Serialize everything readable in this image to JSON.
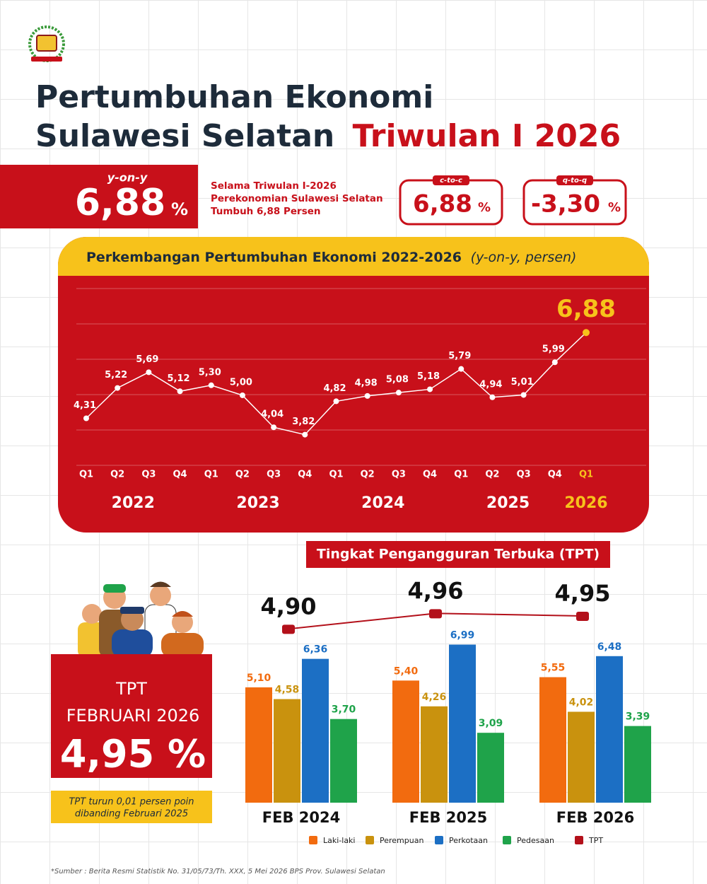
{
  "header": {
    "title_line1": "Pertumbuhan Ekonomi",
    "title_line2": "Sulawesi Selatan",
    "title_highlight": "Triwulan I 2026"
  },
  "yoy": {
    "label": "y-on-y",
    "value": "6,88",
    "unit": "%"
  },
  "summary": [
    "Selama Triwulan I-2026",
    "Perekonomian Sulawesi Selatan",
    "Tumbuh 6,88 Persen"
  ],
  "ctoc": {
    "label": "c-to-c",
    "value": "6,88",
    "unit": "%"
  },
  "qtoq": {
    "label": "q-to-q",
    "value": "-3,30",
    "unit": "%"
  },
  "tpt_box": {
    "title": "TPT",
    "subtitle": "FEBRUARI 2026",
    "value": "4,95 %",
    "note": [
      "TPT turun 0,01 persen poin",
      "dibanding Februari 2025"
    ]
  },
  "source": "*Sumber : Berita Resmi Statistik No. 31/05/73/Th. XXX, 5 Mei 2026 BPS Prov. Sulawesi Selatan",
  "chart_data": [
    {
      "type": "line",
      "title": "Perkembangan Pertumbuhan Ekonomi 2022-2026",
      "subtitle": "(y-on-y, persen)",
      "categories": [
        "Q1",
        "Q2",
        "Q3",
        "Q4",
        "Q1",
        "Q2",
        "Q3",
        "Q4",
        "Q1",
        "Q2",
        "Q3",
        "Q4",
        "Q1",
        "Q2",
        "Q3",
        "Q4",
        "Q1"
      ],
      "groups": [
        "2022",
        "2023",
        "2024",
        "2025",
        "2026"
      ],
      "values": [
        4.31,
        5.22,
        5.69,
        5.12,
        5.3,
        5.0,
        4.04,
        3.82,
        4.82,
        4.98,
        5.08,
        5.18,
        5.79,
        4.94,
        5.01,
        5.99,
        6.88
      ],
      "value_labels": [
        "4,31",
        "5,22",
        "5,69",
        "5,12",
        "5,30",
        "5,00",
        "4,04",
        "3,82",
        "4,82",
        "4,98",
        "5,08",
        "5,18",
        "5,79",
        "4,94",
        "5,01",
        "5,99",
        "6,88"
      ],
      "color": "#ffffff",
      "highlight_color": "#f7c21b",
      "ylim": [
        2.9,
        8.2
      ]
    },
    {
      "type": "bar",
      "title": "Tingkat Pengangguran Terbuka (TPT)",
      "categories": [
        "FEB 2024",
        "FEB 2025",
        "FEB 2026"
      ],
      "series": [
        {
          "name": "Laki-laki",
          "color": "#f26b0f",
          "values": [
            5.1,
            5.4,
            5.55
          ],
          "value_labels": [
            "5,10",
            "5,40",
            "5,55"
          ]
        },
        {
          "name": "Perempuan",
          "color": "#c9920e",
          "values": [
            4.58,
            4.26,
            4.02
          ],
          "value_labels": [
            "4,58",
            "4,26",
            "4,02"
          ]
        },
        {
          "name": "Perkotaan",
          "color": "#1c6fc4",
          "values": [
            6.36,
            6.99,
            6.48
          ],
          "value_labels": [
            "6,36",
            "6,99",
            "6,48"
          ]
        },
        {
          "name": "Pedesaan",
          "color": "#1fa34a",
          "values": [
            3.7,
            3.09,
            3.39
          ],
          "value_labels": [
            "3,70",
            "3,09",
            "3,39"
          ]
        },
        {
          "name": "TPT",
          "color": "#b3101a",
          "axis": "y2",
          "values": [
            4.9,
            4.96,
            4.95
          ],
          "value_labels": [
            "4,90",
            "4,96",
            "4,95"
          ]
        }
      ],
      "ylim": [
        0,
        8.6
      ],
      "y2lim": [
        4.23,
        4.98
      ]
    }
  ]
}
